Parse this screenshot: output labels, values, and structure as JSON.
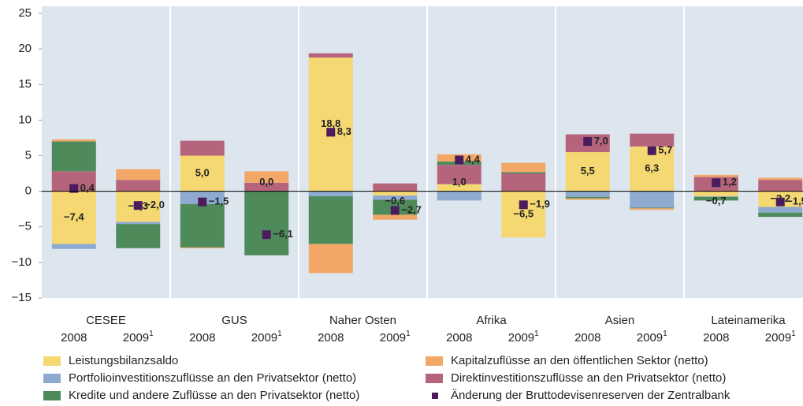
{
  "chart_data": {
    "type": "bar",
    "stacked": true,
    "groups": [
      "CESEE",
      "GUS",
      "Naher Osten",
      "Afrika",
      "Asien",
      "Lateinamerika"
    ],
    "categories": [
      "2008",
      "2009",
      "2008",
      "2009",
      "2008",
      "2009",
      "2008",
      "2009",
      "2008",
      "2009",
      "2008",
      "2009"
    ],
    "footnote_mark": "1",
    "series": [
      {
        "name": "Leistungsbilanzsaldo",
        "color": "#f5d872",
        "values": [
          -7.4,
          -4.3,
          5.0,
          0.0,
          18.8,
          -0.6,
          1.0,
          -6.5,
          5.5,
          6.3,
          -0.7,
          -2.2
        ],
        "value_labels": [
          "−7,4",
          "−4,3",
          "5,0",
          "0,0",
          "18,8",
          "−0,6",
          "1,0",
          "−6,5",
          "5,5",
          "6,3",
          "−0,7",
          "−2,2"
        ]
      },
      {
        "name": "Portfolioinvestitionszuflüsse an den Privatsektor (netto)",
        "color": "#8eaad0",
        "values": [
          -0.7,
          -0.3,
          -1.8,
          0.0,
          -0.7,
          -0.6,
          -1.3,
          0.0,
          -0.8,
          -2.3,
          -0.1,
          -0.8
        ]
      },
      {
        "name": "Kredite und andere Zuflüsse an den Privatsektor (netto)",
        "color": "#4f8a5b",
        "values": [
          4.2,
          -3.4,
          -6.1,
          -9.0,
          -6.7,
          -2.1,
          0.5,
          0.2,
          -0.2,
          -0.1,
          -0.5,
          -0.6
        ]
      },
      {
        "name": "Kapitalzuflüsse an den öffentlichen Sektor (netto)",
        "color": "#f2a766",
        "values": [
          0.3,
          1.5,
          -0.1,
          1.6,
          -4.1,
          -0.7,
          1.0,
          1.3,
          -0.2,
          -0.2,
          0.3,
          0.3
        ]
      },
      {
        "name": "Direktinvestitionszuflüsse an den Privatsektor (netto)",
        "color": "#b5647c",
        "values": [
          2.8,
          1.6,
          2.1,
          1.2,
          0.6,
          1.1,
          2.7,
          2.5,
          2.5,
          1.8,
          2.0,
          1.6
        ]
      },
      {
        "name": "Änderung der Bruttodevisenreserven der Zentralbank",
        "color": "#4a1c5c",
        "type": "scatter",
        "values": [
          0.4,
          -2.0,
          -1.5,
          -6.1,
          8.3,
          -2.7,
          4.4,
          -1.9,
          7.0,
          5.7,
          1.2,
          -1.5
        ],
        "value_labels": [
          "0,4",
          "−2,0",
          "−1,5",
          "−6,1",
          "8,3",
          "−2,7",
          "4,4",
          "−1,9",
          "7,0",
          "5,7",
          "1,2",
          "−1,5"
        ]
      }
    ],
    "ylim": [
      -15,
      25
    ],
    "yticks": [
      {
        "value": -15,
        "label": "−15"
      },
      {
        "value": -10,
        "label": "−10"
      },
      {
        "value": -5,
        "label": "−5"
      },
      0,
      5,
      10,
      15,
      20,
      25
    ],
    "grid": false
  }
}
